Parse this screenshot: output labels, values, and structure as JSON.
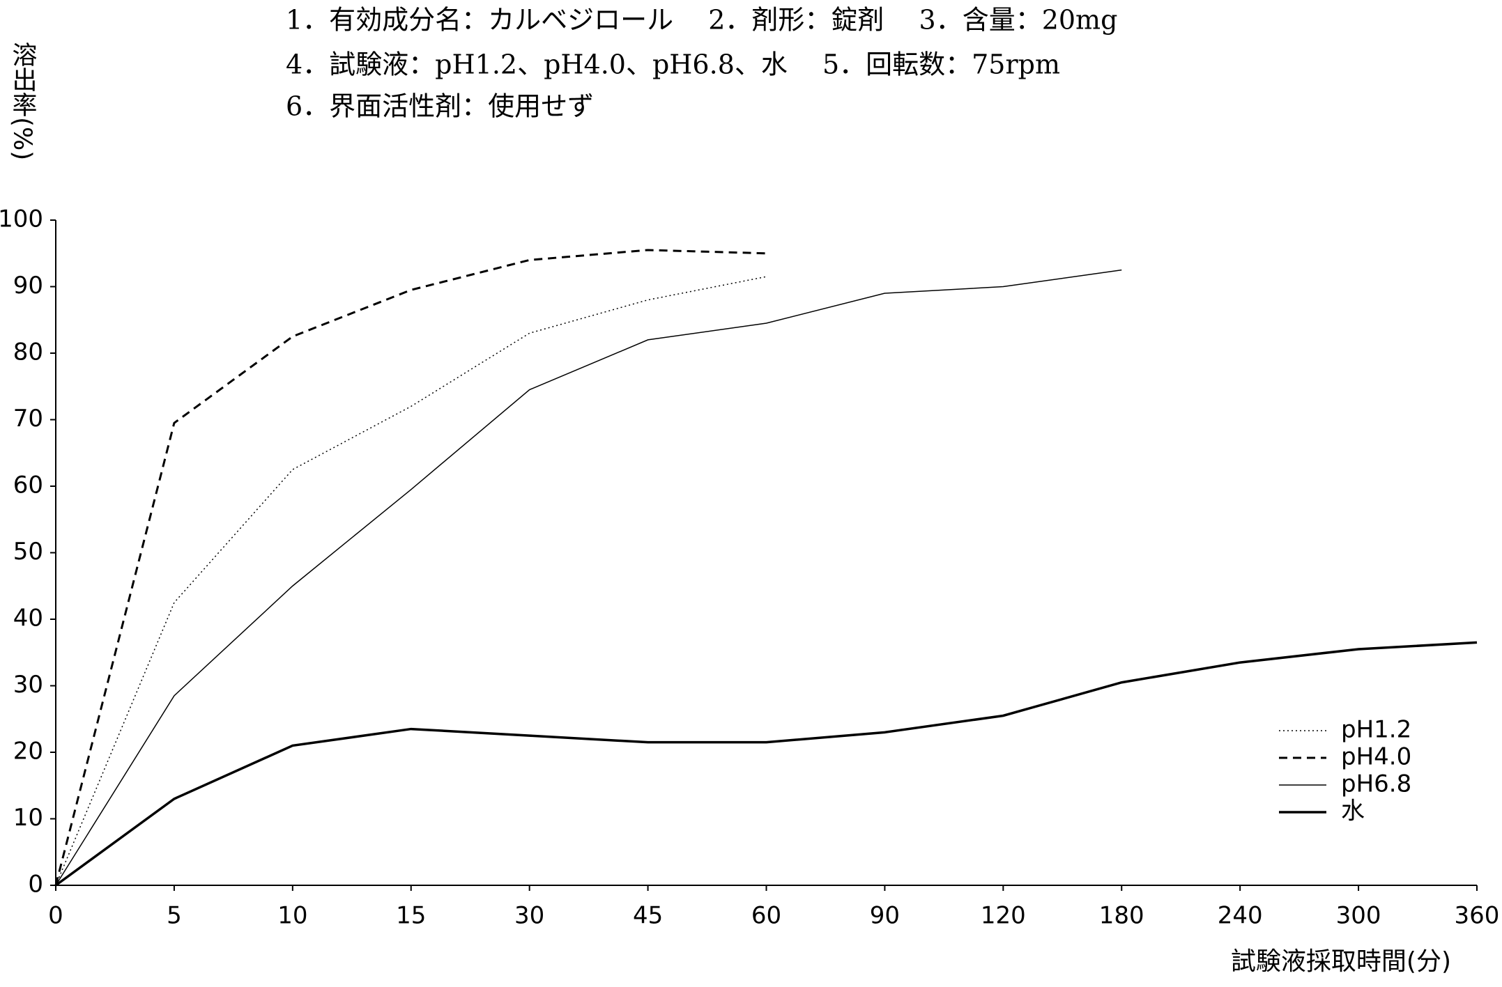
{
  "chart_data": {
    "type": "line",
    "header_lines": [
      "1．有効成分名：カルベジロール　 2．剤形：錠剤　 3．含量：20mg",
      "4．試験液：pH1.2、pH4.0、pH6.8、水　 5．回転数：75rpm",
      "6．界面活性剤：使用せず"
    ],
    "y_label": "溶出率(%)",
    "x_label": "試験液採取時間(分)",
    "categories": [
      "0",
      "5",
      "10",
      "15",
      "30",
      "45",
      "60",
      "90",
      "120",
      "180",
      "240",
      "300",
      "360"
    ],
    "series": [
      {
        "name": "pH1.2",
        "color": "#000000",
        "dash": "2,4",
        "width": 1.5,
        "values": [
          0,
          42.5,
          62.5,
          72,
          83,
          88,
          91.5,
          null,
          null,
          null,
          null,
          null,
          null
        ]
      },
      {
        "name": "pH4.0",
        "color": "#000000",
        "dash": "12,8",
        "width": 3,
        "values": [
          0,
          69.5,
          82.5,
          89.5,
          94,
          95.5,
          95,
          null,
          null,
          null,
          null,
          null,
          null
        ]
      },
      {
        "name": "pH6.8",
        "color": "#000000",
        "dash": "none",
        "width": 1.5,
        "values": [
          0,
          28.5,
          45,
          59.5,
          74.5,
          82,
          84.5,
          89,
          90,
          92.5,
          null,
          null,
          null
        ]
      },
      {
        "name": "水",
        "color": "#000000",
        "dash": "none",
        "width": 3.5,
        "values": [
          0,
          13,
          21,
          23.5,
          22.5,
          21.5,
          21.5,
          23,
          25.5,
          30.5,
          33.5,
          35.5,
          36.5
        ]
      }
    ],
    "ylim": [
      0,
      100
    ],
    "yticks": [
      0,
      10,
      20,
      30,
      40,
      50,
      60,
      70,
      80,
      90,
      100
    ],
    "grid": false,
    "legend": "lower right"
  }
}
